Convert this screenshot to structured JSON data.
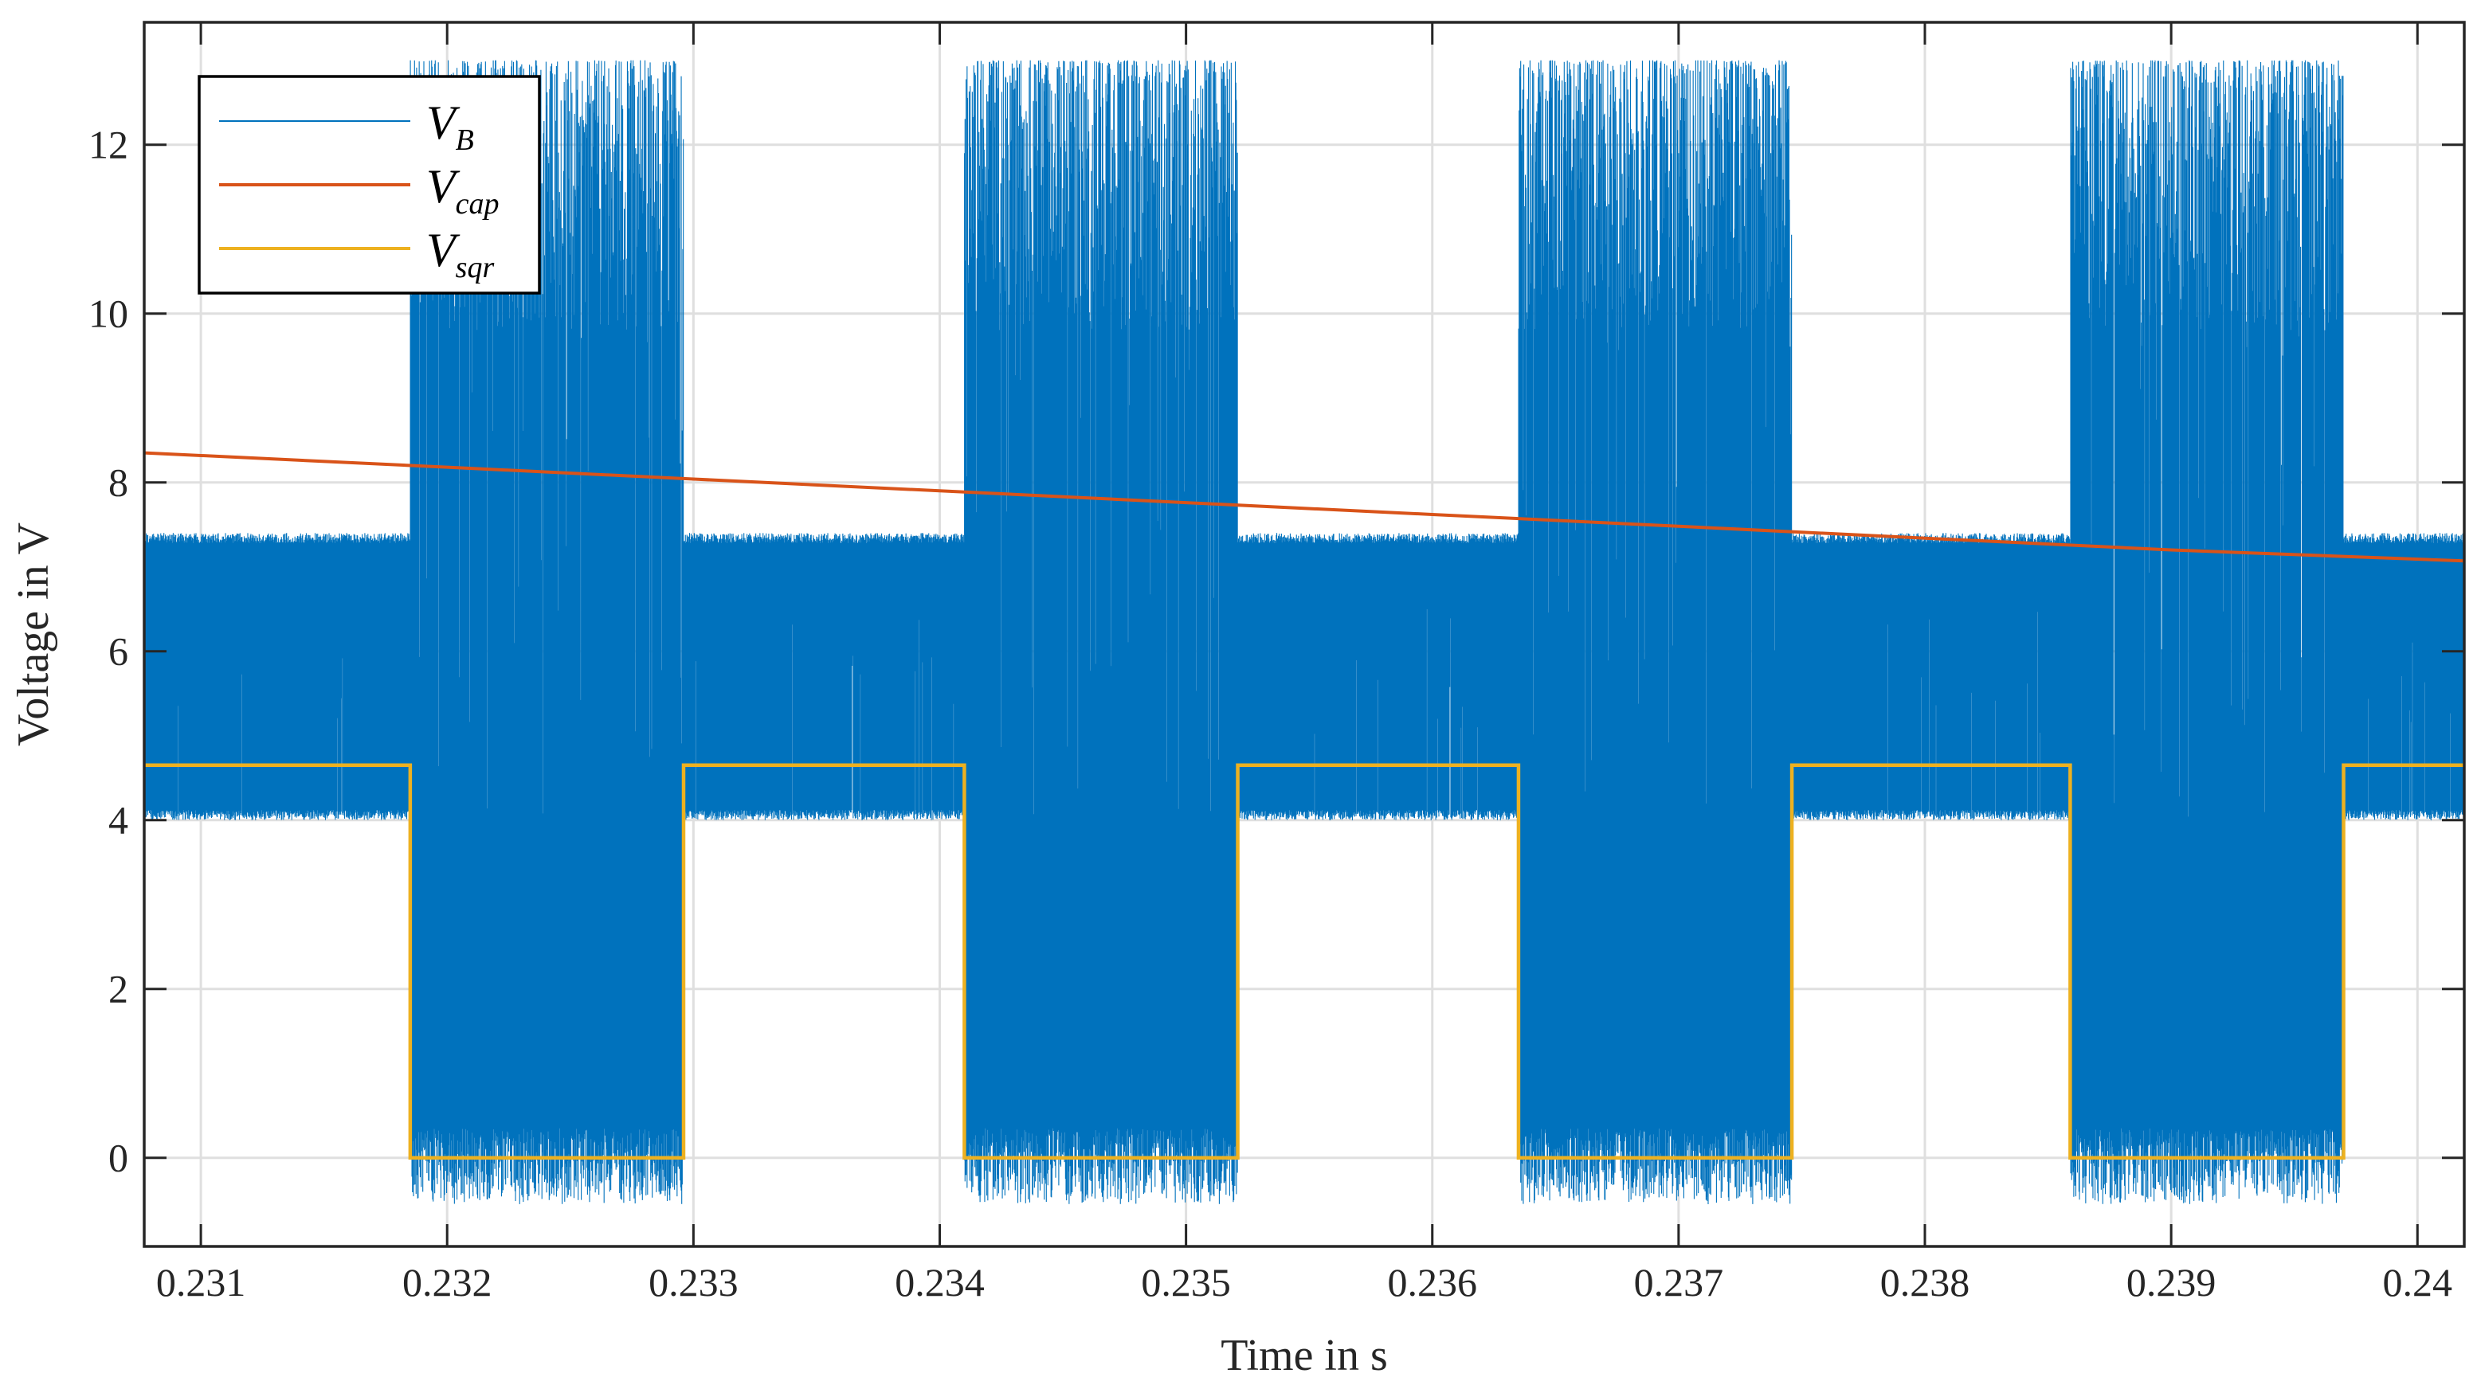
{
  "chart_data": {
    "type": "line",
    "title": "",
    "xlabel": "Time in s",
    "ylabel": "Voltage in V",
    "xlim": [
      0.23077,
      0.24019
    ],
    "ylim": [
      -1.05,
      13.45
    ],
    "xticks": [
      0.231,
      0.232,
      0.233,
      0.234,
      0.235,
      0.236,
      0.237,
      0.238,
      0.239,
      0.24
    ],
    "xtick_labels": [
      "0.231",
      "0.232",
      "0.233",
      "0.234",
      "0.235",
      "0.236",
      "0.237",
      "0.238",
      "0.239",
      "0.24"
    ],
    "yticks": [
      0,
      2,
      4,
      6,
      8,
      10,
      12
    ],
    "ytick_labels": [
      "0",
      "2",
      "4",
      "6",
      "8",
      "10",
      "12"
    ],
    "grid": true,
    "legend_position": "top-left",
    "series": [
      {
        "name": "V_B",
        "label_main": "V",
        "label_sub": "B",
        "color": "#0072BD",
        "kind": "noisy-burst",
        "low_state_band": [
          4.0,
          7.4
        ],
        "burst_band": [
          -0.55,
          13.0
        ],
        "bursts": [
          {
            "start": 0.23185,
            "end": 0.23296
          },
          {
            "start": 0.2341,
            "end": 0.23521
          },
          {
            "start": 0.23635,
            "end": 0.23746
          },
          {
            "start": 0.23859,
            "end": 0.2397
          }
        ]
      },
      {
        "name": "V_cap",
        "label_main": "V",
        "label_sub": "cap",
        "color": "#D95319",
        "kind": "line",
        "x": [
          0.23077,
          0.232,
          0.233,
          0.234,
          0.235,
          0.236,
          0.237,
          0.238,
          0.239,
          0.24019
        ],
        "y": [
          8.35,
          8.18,
          8.04,
          7.9,
          7.76,
          7.62,
          7.48,
          7.34,
          7.2,
          7.07
        ]
      },
      {
        "name": "V_sqr",
        "label_main": "V",
        "label_sub": "sqr",
        "color": "#EDB120",
        "kind": "square",
        "high": 4.65,
        "low": 0.0,
        "low_intervals": [
          {
            "start": 0.23185,
            "end": 0.23296
          },
          {
            "start": 0.2341,
            "end": 0.23521
          },
          {
            "start": 0.23635,
            "end": 0.23746
          },
          {
            "start": 0.23859,
            "end": 0.2397
          }
        ]
      }
    ]
  }
}
